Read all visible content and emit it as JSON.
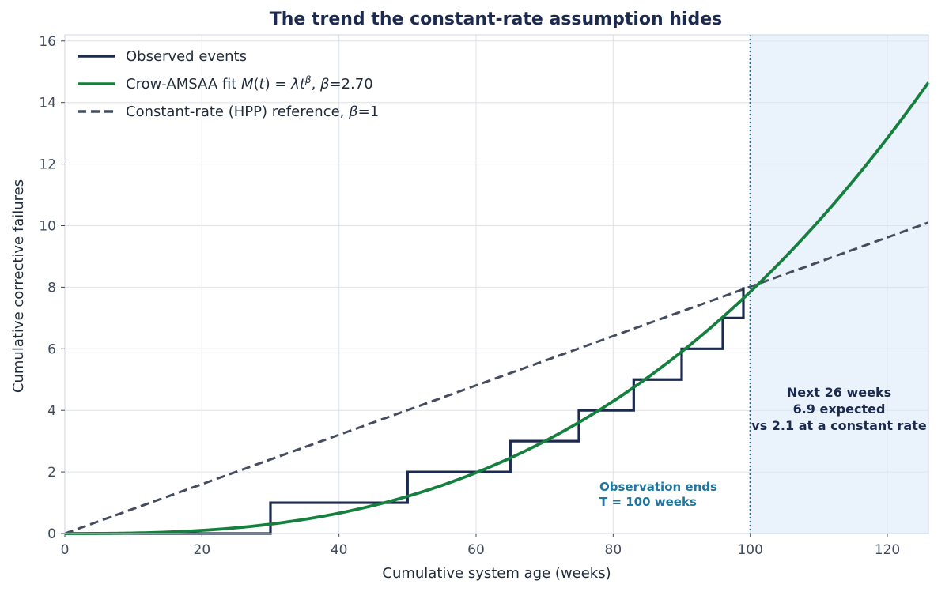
{
  "chart_data": {
    "type": "line",
    "title": "The trend the constant-rate assumption hides",
    "xlabel": "Cumulative system age (weeks)",
    "ylabel": "Cumulative corrective failures",
    "xlim": [
      0,
      126
    ],
    "ylim": [
      0,
      16.2
    ],
    "x_ticks": [
      0,
      20,
      40,
      60,
      80,
      100,
      120
    ],
    "y_ticks": [
      0,
      2,
      4,
      6,
      8,
      10,
      12,
      14,
      16
    ],
    "grid": true,
    "legend_position": "top-left",
    "colors": {
      "observed": "#1b2a4e",
      "fit": "#15803d",
      "reference": "#434d5e",
      "obs_end_line": "#1f6f8b",
      "forecast_shade": "#eaf3fc",
      "obs_annotation": "#1f77a0",
      "next_annotation": "#1b2a4e"
    },
    "series": [
      {
        "name": "Observed events",
        "style": "step",
        "event_times": [
          30,
          50,
          65,
          75,
          83,
          90,
          96,
          99
        ],
        "x": [
          0,
          30,
          30,
          50,
          50,
          65,
          65,
          75,
          75,
          83,
          83,
          90,
          90,
          96,
          96,
          99,
          99
        ],
        "y": [
          0,
          0,
          1,
          1,
          2,
          2,
          3,
          3,
          4,
          4,
          5,
          5,
          6,
          6,
          7,
          7,
          8
        ]
      },
      {
        "name": "Crow-AMSAA fit",
        "style": "solid",
        "model": {
          "beta": 2.7,
          "value_at_t": 100,
          "value": 7.85
        }
      },
      {
        "name": "Constant-rate (HPP) reference",
        "style": "dashed",
        "x": [
          0,
          126
        ],
        "y": [
          0,
          10.1
        ]
      }
    ],
    "legend": [
      {
        "segments": [
          {
            "t": "Observed events"
          }
        ]
      },
      {
        "segments": [
          {
            "t": "Crow-AMSAA fit  "
          },
          {
            "t": "M",
            "i": true
          },
          {
            "t": "("
          },
          {
            "t": "t",
            "i": true
          },
          {
            "t": ") = "
          },
          {
            "t": "λt",
            "i": true
          },
          {
            "t": "β",
            "i": true,
            "sup": true
          },
          {
            "t": ", "
          },
          {
            "t": "β",
            "i": true
          },
          {
            "t": "=2.70"
          }
        ]
      },
      {
        "segments": [
          {
            "t": "Constant-rate (HPP) reference, "
          },
          {
            "t": "β",
            "i": true
          },
          {
            "t": "=1"
          }
        ]
      }
    ],
    "observation_end": 100,
    "annotations": {
      "observation_end": [
        "Observation ends",
        "T = 100 weeks"
      ],
      "forecast": [
        "Next 26 weeks",
        "6.9 expected",
        "vs 2.1 at a constant rate"
      ]
    }
  }
}
